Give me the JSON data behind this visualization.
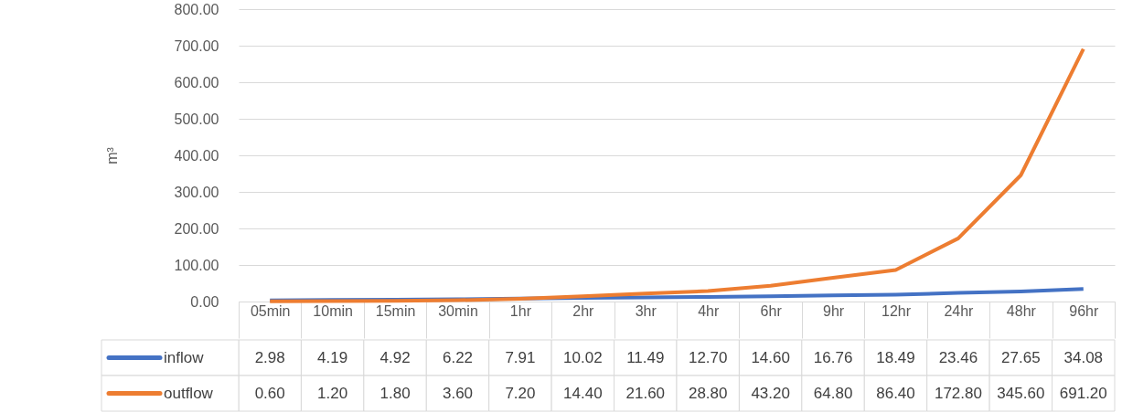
{
  "chart_data": {
    "type": "line",
    "ylabel": "m³",
    "categories": [
      "05min",
      "10min",
      "15min",
      "30min",
      "1hr",
      "2hr",
      "3hr",
      "4hr",
      "6hr",
      "9hr",
      "12hr",
      "24hr",
      "48hr",
      "96hr"
    ],
    "series": [
      {
        "name": "inflow",
        "color": "#4472c4",
        "values": [
          2.98,
          4.19,
          4.92,
          6.22,
          7.91,
          10.02,
          11.49,
          12.7,
          14.6,
          16.76,
          18.49,
          23.46,
          27.65,
          34.08
        ],
        "value_labels": [
          "2.98",
          "4.19",
          "4.92",
          "6.22",
          "7.91",
          "10.02",
          "11.49",
          "12.70",
          "14.60",
          "16.76",
          "18.49",
          "23.46",
          "27.65",
          "34.08"
        ]
      },
      {
        "name": "outflow",
        "color": "#ed7d31",
        "values": [
          0.6,
          1.2,
          1.8,
          3.6,
          7.2,
          14.4,
          21.6,
          28.8,
          43.2,
          64.8,
          86.4,
          172.8,
          345.6,
          691.2
        ],
        "value_labels": [
          "0.60",
          "1.20",
          "1.80",
          "3.60",
          "7.20",
          "14.40",
          "21.60",
          "28.80",
          "43.20",
          "64.80",
          "86.40",
          "172.80",
          "345.60",
          "691.20"
        ]
      }
    ],
    "ylim": [
      0,
      800
    ],
    "yticks": [
      {
        "value": 0,
        "label": "0.00"
      },
      {
        "value": 100,
        "label": "100.00"
      },
      {
        "value": 200,
        "label": "200.00"
      },
      {
        "value": 300,
        "label": "300.00"
      },
      {
        "value": 400,
        "label": "400.00"
      },
      {
        "value": 500,
        "label": "500.00"
      },
      {
        "value": 600,
        "label": "600.00"
      },
      {
        "value": 700,
        "label": "700.00"
      },
      {
        "value": 800,
        "label": "800.00"
      }
    ],
    "grid": "y",
    "legend": "bottom",
    "line_style": "solid",
    "marker": "none"
  }
}
